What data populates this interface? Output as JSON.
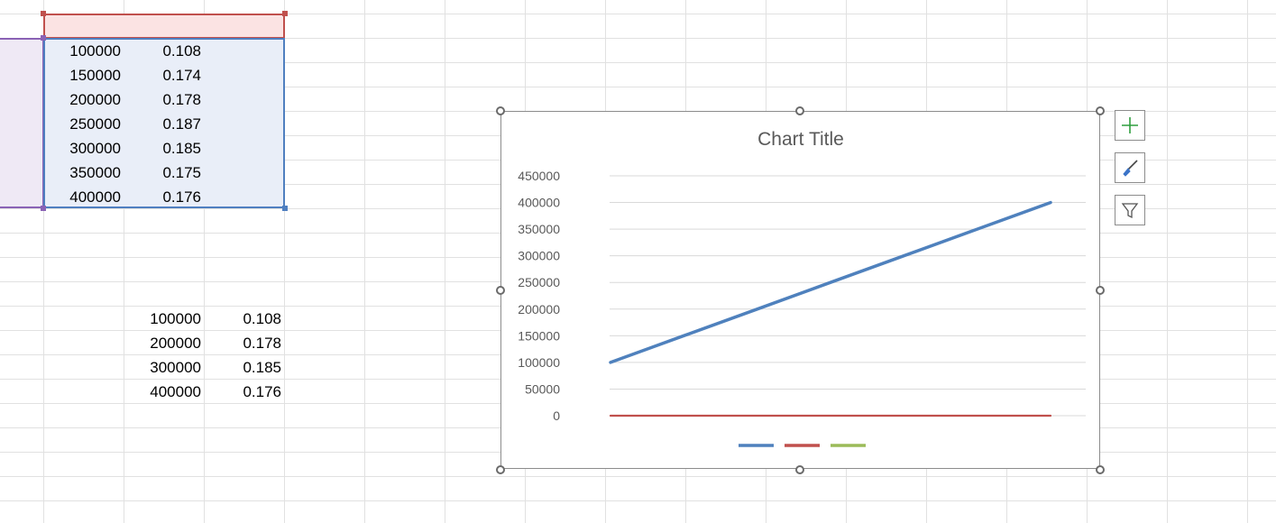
{
  "sheet": {
    "table_a": [
      [
        "100000",
        "0.108"
      ],
      [
        "150000",
        "0.174"
      ],
      [
        "200000",
        "0.178"
      ],
      [
        "250000",
        "0.187"
      ],
      [
        "300000",
        "0.185"
      ],
      [
        "350000",
        "0.175"
      ],
      [
        "400000",
        "0.176"
      ]
    ],
    "table_b": [
      [
        "100000",
        "0.108"
      ],
      [
        "200000",
        "0.178"
      ],
      [
        "300000",
        "0.185"
      ],
      [
        "400000",
        "0.176"
      ]
    ]
  },
  "chart_data": {
    "type": "line",
    "title": "Chart Title",
    "xlabel": "",
    "ylabel": "",
    "ylim": [
      0,
      450000
    ],
    "yticks": [
      "450000",
      "400000",
      "350000",
      "300000",
      "250000",
      "200000",
      "150000",
      "100000",
      "50000",
      "0"
    ],
    "grid": true,
    "legend_position": "bottom",
    "series": [
      {
        "color": "#4f81bd",
        "values": [
          100000,
          150000,
          200000,
          250000,
          300000,
          350000,
          400000
        ]
      },
      {
        "color": "#c0504d",
        "values": [
          0.108,
          0.174,
          0.178,
          0.187,
          0.185,
          0.175,
          0.176
        ]
      },
      {
        "color": "#9bbb59",
        "values": []
      }
    ]
  },
  "chart_tools": {
    "elements_icon": "plus-icon",
    "styles_icon": "brush-icon",
    "filters_icon": "funnel-icon"
  },
  "colors": {
    "gridline": "#e1e1e1",
    "selection_pink": "#c0504d",
    "selection_blue": "#4f7fc0",
    "selection_purple": "#8a62b5",
    "plus_green": "#2e9e3e",
    "brush_blue": "#3b74c8"
  }
}
